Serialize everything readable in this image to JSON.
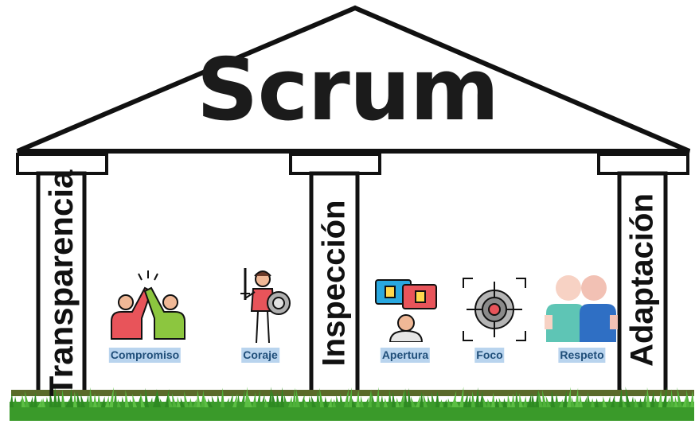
{
  "title": "Scrum",
  "pillars": [
    {
      "label": "Transparencia"
    },
    {
      "label": "Inspección"
    },
    {
      "label": "Adaptación"
    }
  ],
  "values": [
    {
      "label": "Compromiso",
      "icon": "high-five-icon"
    },
    {
      "label": "Coraje",
      "icon": "warrior-icon"
    },
    {
      "label": "Apertura",
      "icon": "feedback-person-icon"
    },
    {
      "label": "Foco",
      "icon": "target-icon"
    },
    {
      "label": "Respeto",
      "icon": "people-icon"
    }
  ],
  "colors": {
    "outline": "#111111",
    "grass": "#3a9a2a",
    "label_bg": "#b9d4ee",
    "label_text": "#1f4e79"
  }
}
